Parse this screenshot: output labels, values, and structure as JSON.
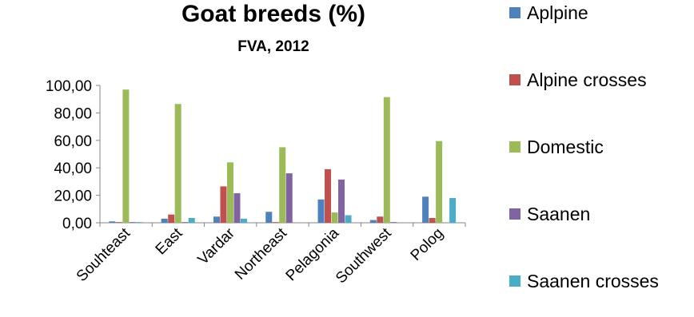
{
  "chart_data": {
    "type": "bar",
    "title": "Goat breeds (%)",
    "subtitle": "FVA, 2012",
    "xlabel": "",
    "ylabel": "",
    "ylim": [
      0,
      100
    ],
    "yticks": [
      0,
      20,
      40,
      60,
      80,
      100
    ],
    "ytick_labels": [
      "0,00",
      "20,00",
      "40,00",
      "60,00",
      "80,00",
      "100,00"
    ],
    "grid": false,
    "legend_position": "right",
    "categories": [
      "Souhteast",
      "East",
      "Vardar",
      "Northeast",
      "Pelagonia",
      "Southwest",
      "Polog"
    ],
    "series": [
      {
        "name": "Aplpine",
        "color": "#4f81bd",
        "values": [
          1.0,
          3.0,
          4.5,
          8.0,
          17.0,
          2.0,
          19.0
        ]
      },
      {
        "name": "Alpine crosses",
        "color": "#c0504d",
        "values": [
          0.5,
          6.0,
          26.5,
          0.5,
          39.0,
          4.5,
          3.5
        ]
      },
      {
        "name": "Domestic",
        "color": "#9bbb59",
        "values": [
          97.0,
          86.5,
          44.0,
          55.0,
          7.5,
          91.5,
          59.5
        ]
      },
      {
        "name": "Saanen",
        "color": "#8064a2",
        "values": [
          0.5,
          0.5,
          21.5,
          36.0,
          31.5,
          0.5,
          0.0
        ]
      },
      {
        "name": "Saanen crosses",
        "color": "#4bacc6",
        "values": [
          0.5,
          3.5,
          3.0,
          0.0,
          5.5,
          0.0,
          18.0
        ]
      }
    ]
  }
}
